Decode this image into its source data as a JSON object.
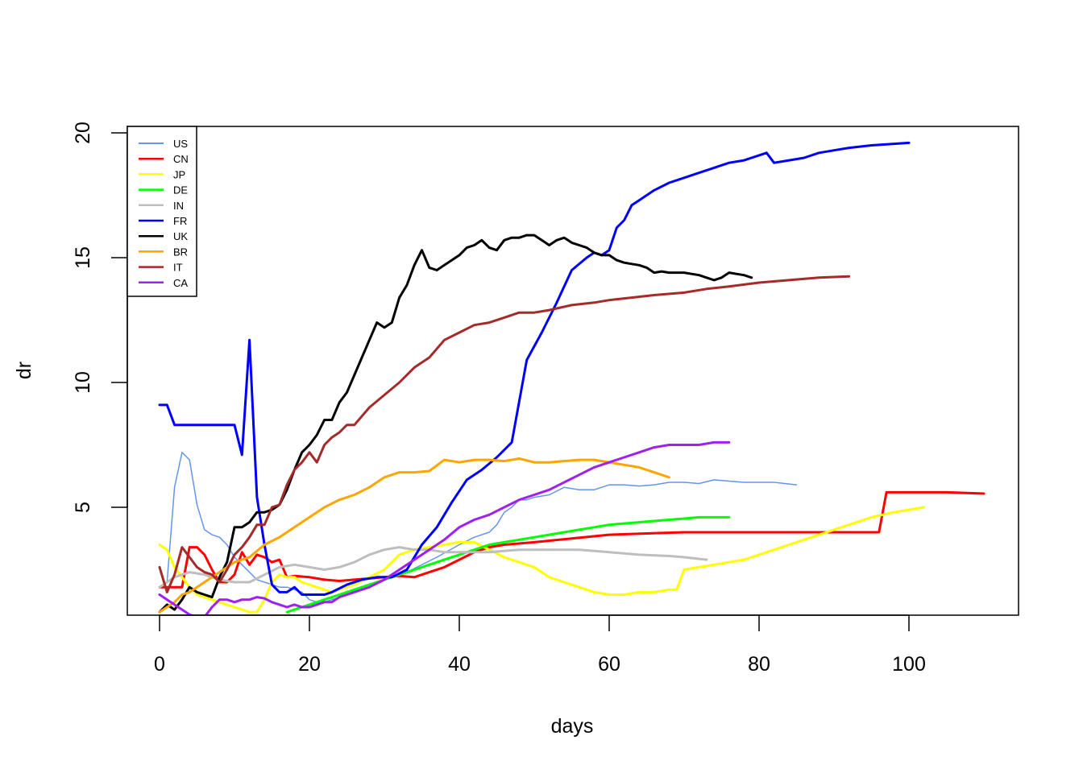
{
  "chart_data": {
    "type": "line",
    "xlabel": "days",
    "ylabel": "dr",
    "xlim": [
      0,
      110
    ],
    "ylim": [
      0.8,
      20
    ],
    "xticks": [
      0,
      20,
      40,
      60,
      80,
      100
    ],
    "yticks": [
      5,
      10,
      15,
      20
    ],
    "legend_position": "top-left",
    "series": [
      {
        "name": "US",
        "color": "#6495ED",
        "line_width": 1.5,
        "x": [
          0,
          1,
          2,
          3,
          4,
          5,
          6,
          7,
          8,
          9,
          10,
          11,
          12,
          13,
          14,
          15,
          16,
          17,
          18,
          19,
          20,
          21,
          22,
          23,
          25,
          27,
          30,
          33,
          35,
          37,
          40,
          42,
          44,
          45,
          46,
          47,
          48,
          49,
          50,
          52,
          54,
          56,
          58,
          60,
          62,
          64,
          66,
          68,
          70,
          72,
          74,
          76,
          78,
          80,
          82,
          85
        ],
        "y": [
          1.8,
          2.0,
          5.8,
          7.2,
          6.9,
          5.1,
          4.1,
          3.9,
          3.8,
          3.5,
          3.0,
          2.7,
          2.4,
          2.1,
          2.0,
          1.9,
          1.8,
          1.8,
          1.7,
          1.6,
          1.3,
          1.2,
          1.2,
          1.3,
          1.5,
          1.8,
          2.1,
          2.4,
          2.7,
          3.0,
          3.5,
          3.8,
          4.0,
          4.3,
          4.8,
          5.0,
          5.3,
          5.3,
          5.4,
          5.5,
          5.8,
          5.7,
          5.7,
          5.9,
          5.9,
          5.85,
          5.9,
          6.0,
          6.0,
          5.95,
          6.1,
          6.05,
          6.0,
          6.0,
          6.0,
          5.9
        ]
      },
      {
        "name": "CN",
        "color": "#FF0000",
        "line_width": 3,
        "x": [
          0,
          1,
          2,
          3,
          4,
          5,
          6,
          7,
          8,
          9,
          10,
          11,
          12,
          13,
          14,
          15,
          16,
          17,
          18,
          20,
          22,
          24,
          26,
          28,
          30,
          32,
          34,
          36,
          38,
          40,
          42,
          44,
          46,
          50,
          55,
          60,
          65,
          70,
          75,
          80,
          85,
          90,
          96,
          97,
          100,
          105,
          110
        ],
        "y": [
          1.8,
          1.8,
          1.8,
          1.8,
          3.4,
          3.4,
          3.1,
          2.5,
          2.0,
          2.0,
          2.3,
          3.2,
          2.7,
          3.1,
          3.0,
          2.8,
          2.9,
          2.2,
          2.25,
          2.2,
          2.1,
          2.05,
          2.1,
          2.15,
          2.2,
          2.25,
          2.2,
          2.4,
          2.6,
          2.9,
          3.2,
          3.4,
          3.5,
          3.6,
          3.75,
          3.9,
          3.95,
          4.0,
          4.0,
          4.0,
          4.0,
          4.0,
          4.0,
          5.6,
          5.6,
          5.6,
          5.55
        ]
      },
      {
        "name": "JP",
        "color": "#FFFF00",
        "line_width": 3,
        "x": [
          0,
          1,
          2,
          3,
          4,
          5,
          6,
          7,
          8,
          9,
          10,
          11,
          12,
          13,
          14,
          15,
          16,
          17,
          18,
          19,
          20,
          21,
          22,
          23,
          24,
          26,
          28,
          30,
          32,
          34,
          36,
          38,
          40,
          42,
          44,
          46,
          48,
          50,
          52,
          54,
          56,
          58,
          60,
          62,
          64,
          66,
          68,
          69,
          70,
          72,
          74,
          76,
          78,
          80,
          82,
          84,
          86,
          88,
          90,
          92,
          95,
          98,
          102
        ],
        "y": [
          3.5,
          3.3,
          2.6,
          2.2,
          1.8,
          1.5,
          1.4,
          1.3,
          1.2,
          1.1,
          1.0,
          0.9,
          0.8,
          0.8,
          1.3,
          2.0,
          2.3,
          2.2,
          2.2,
          2.0,
          1.9,
          1.8,
          1.7,
          1.6,
          1.7,
          1.9,
          2.2,
          2.5,
          3.1,
          3.3,
          3.4,
          3.5,
          3.6,
          3.6,
          3.3,
          3.0,
          2.8,
          2.6,
          2.2,
          2.0,
          1.8,
          1.6,
          1.5,
          1.5,
          1.6,
          1.6,
          1.7,
          1.7,
          2.5,
          2.6,
          2.7,
          2.8,
          2.9,
          3.1,
          3.3,
          3.5,
          3.7,
          3.9,
          4.1,
          4.3,
          4.6,
          4.8,
          5.0
        ]
      },
      {
        "name": "DE",
        "color": "#00FF00",
        "line_width": 3,
        "x": [
          17,
          18,
          20,
          22,
          24,
          26,
          28,
          30,
          32,
          34,
          36,
          38,
          40,
          42,
          44,
          46,
          48,
          50,
          52,
          54,
          56,
          58,
          60,
          62,
          64,
          66,
          68,
          70,
          72,
          74,
          76
        ],
        "y": [
          0.8,
          0.9,
          1.1,
          1.3,
          1.5,
          1.7,
          1.9,
          2.1,
          2.3,
          2.5,
          2.7,
          2.9,
          3.1,
          3.3,
          3.5,
          3.6,
          3.7,
          3.8,
          3.9,
          4.0,
          4.1,
          4.2,
          4.3,
          4.35,
          4.4,
          4.45,
          4.5,
          4.55,
          4.6,
          4.6,
          4.6
        ]
      },
      {
        "name": "IN",
        "color": "#BEBEBE",
        "line_width": 3,
        "x": [
          0,
          2,
          4,
          6,
          8,
          10,
          12,
          14,
          16,
          18,
          20,
          22,
          24,
          26,
          28,
          30,
          32,
          34,
          36,
          38,
          40,
          44,
          48,
          52,
          56,
          60,
          64,
          68,
          70,
          73
        ],
        "y": [
          1.8,
          2.2,
          2.4,
          2.3,
          2.1,
          2.0,
          2.0,
          2.3,
          2.6,
          2.7,
          2.6,
          2.5,
          2.6,
          2.8,
          3.1,
          3.3,
          3.4,
          3.3,
          3.3,
          3.2,
          3.2,
          3.2,
          3.3,
          3.3,
          3.3,
          3.2,
          3.1,
          3.05,
          3.0,
          2.9
        ]
      },
      {
        "name": "FR",
        "color": "#0000FF",
        "line_width": 3,
        "x": [
          0,
          1,
          2,
          4,
          6,
          8,
          10,
          11,
          12,
          13,
          14,
          15,
          16,
          17,
          18,
          19,
          20,
          21,
          22,
          23,
          25,
          27,
          29,
          31,
          33,
          35,
          37,
          39,
          41,
          43,
          45,
          47,
          49,
          51,
          53,
          55,
          57,
          58,
          59,
          60,
          61,
          62,
          63,
          64,
          66,
          68,
          70,
          72,
          74,
          76,
          78,
          80,
          81,
          82,
          84,
          86,
          88,
          90,
          92,
          95,
          100
        ],
        "y": [
          9.1,
          9.1,
          8.3,
          8.3,
          8.3,
          8.3,
          8.3,
          7.1,
          11.7,
          5.4,
          3.5,
          1.9,
          1.6,
          1.6,
          1.8,
          1.5,
          1.5,
          1.5,
          1.5,
          1.6,
          1.9,
          2.1,
          2.2,
          2.2,
          2.5,
          3.5,
          4.2,
          5.2,
          6.1,
          6.5,
          7.0,
          7.6,
          10.9,
          12.0,
          13.2,
          14.5,
          15.0,
          15.2,
          15.1,
          15.3,
          16.2,
          16.5,
          17.1,
          17.3,
          17.7,
          18.0,
          18.2,
          18.4,
          18.6,
          18.8,
          18.9,
          19.1,
          19.2,
          18.8,
          18.9,
          19.0,
          19.2,
          19.3,
          19.4,
          19.5,
          19.6
        ]
      },
      {
        "name": "UK",
        "color": "#000000",
        "line_width": 3,
        "x": [
          0,
          1,
          2,
          3,
          4,
          5,
          6,
          7,
          8,
          9,
          10,
          11,
          12,
          13,
          14,
          15,
          16,
          17,
          18,
          19,
          20,
          21,
          22,
          23,
          24,
          25,
          26,
          27,
          28,
          29,
          30,
          31,
          32,
          33,
          34,
          35,
          36,
          37,
          38,
          39,
          40,
          41,
          42,
          43,
          44,
          45,
          46,
          47,
          48,
          49,
          50,
          51,
          52,
          53,
          54,
          55,
          56,
          57,
          58,
          59,
          60,
          61,
          62,
          63,
          64,
          65,
          66,
          67,
          68,
          69,
          70,
          71,
          72,
          73,
          74,
          75,
          76,
          77,
          78,
          79
        ],
        "y": [
          0.8,
          1.1,
          0.9,
          1.3,
          1.8,
          1.6,
          1.5,
          1.4,
          2.2,
          2.8,
          4.2,
          4.2,
          4.4,
          4.8,
          4.8,
          4.9,
          5.1,
          5.7,
          6.5,
          7.2,
          7.5,
          7.9,
          8.5,
          8.5,
          9.2,
          9.6,
          10.3,
          11.0,
          11.7,
          12.4,
          12.2,
          12.4,
          13.4,
          13.9,
          14.7,
          15.3,
          14.6,
          14.5,
          14.7,
          14.9,
          15.1,
          15.4,
          15.5,
          15.7,
          15.4,
          15.3,
          15.7,
          15.8,
          15.8,
          15.9,
          15.9,
          15.7,
          15.5,
          15.7,
          15.8,
          15.6,
          15.5,
          15.4,
          15.2,
          15.1,
          15.1,
          14.9,
          14.8,
          14.75,
          14.7,
          14.6,
          14.4,
          14.45,
          14.4,
          14.4,
          14.4,
          14.35,
          14.3,
          14.2,
          14.1,
          14.2,
          14.4,
          14.35,
          14.3,
          14.2
        ]
      },
      {
        "name": "BR",
        "color": "#FFA500",
        "line_width": 3,
        "x": [
          0,
          1,
          2,
          3,
          4,
          5,
          6,
          7,
          8,
          9,
          10,
          11,
          12,
          14,
          16,
          18,
          20,
          22,
          24,
          26,
          28,
          30,
          32,
          34,
          36,
          38,
          40,
          42,
          44,
          46,
          48,
          50,
          52,
          54,
          56,
          58,
          60,
          62,
          64,
          66,
          68
        ],
        "y": [
          0.8,
          1.0,
          1.2,
          1.5,
          1.6,
          1.8,
          2.0,
          2.2,
          2.4,
          2.6,
          2.8,
          2.9,
          3.0,
          3.5,
          3.8,
          4.2,
          4.6,
          5.0,
          5.3,
          5.5,
          5.8,
          6.2,
          6.4,
          6.4,
          6.45,
          6.9,
          6.8,
          6.9,
          6.9,
          6.85,
          6.95,
          6.8,
          6.8,
          6.85,
          6.9,
          6.9,
          6.8,
          6.7,
          6.6,
          6.4,
          6.2
        ]
      },
      {
        "name": "IT",
        "color": "#A52A2A",
        "line_width": 3,
        "x": [
          0,
          1,
          2,
          3,
          4,
          5,
          6,
          7,
          8,
          9,
          10,
          11,
          12,
          13,
          14,
          15,
          16,
          17,
          18,
          19,
          20,
          21,
          22,
          23,
          24,
          25,
          26,
          28,
          30,
          32,
          34,
          36,
          38,
          40,
          42,
          44,
          46,
          48,
          50,
          52,
          55,
          58,
          60,
          63,
          66,
          70,
          73,
          76,
          80,
          84,
          88,
          92
        ],
        "y": [
          2.6,
          1.6,
          2.3,
          3.4,
          3.0,
          2.6,
          2.4,
          2.3,
          2.0,
          2.5,
          3.1,
          3.4,
          3.8,
          4.3,
          4.3,
          5.0,
          5.1,
          5.9,
          6.5,
          6.8,
          7.2,
          6.8,
          7.5,
          7.8,
          8.0,
          8.3,
          8.3,
          9.0,
          9.5,
          10.0,
          10.6,
          11.0,
          11.7,
          12.0,
          12.3,
          12.4,
          12.6,
          12.8,
          12.8,
          12.9,
          13.1,
          13.2,
          13.3,
          13.4,
          13.5,
          13.6,
          13.75,
          13.85,
          14.0,
          14.1,
          14.2,
          14.25
        ]
      },
      {
        "name": "CA",
        "color": "#A020F0",
        "line_width": 3,
        "x": [
          0,
          1,
          2,
          3,
          4,
          5,
          6,
          7,
          8,
          9,
          10,
          11,
          12,
          13,
          14,
          15,
          16,
          17,
          18,
          19,
          20,
          21,
          22,
          23,
          24,
          26,
          28,
          30,
          32,
          34,
          36,
          38,
          40,
          42,
          44,
          46,
          48,
          50,
          52,
          54,
          56,
          58,
          60,
          62,
          64,
          66,
          68,
          70,
          72,
          74,
          76
        ],
        "y": [
          1.5,
          1.3,
          1.1,
          0.9,
          0.7,
          0.6,
          0.6,
          1.0,
          1.3,
          1.3,
          1.2,
          1.3,
          1.3,
          1.4,
          1.35,
          1.2,
          1.1,
          1.0,
          1.1,
          1.0,
          1.0,
          1.1,
          1.2,
          1.2,
          1.4,
          1.6,
          1.8,
          2.1,
          2.5,
          2.9,
          3.3,
          3.7,
          4.2,
          4.5,
          4.7,
          5.0,
          5.3,
          5.5,
          5.7,
          6.0,
          6.3,
          6.6,
          6.8,
          7.0,
          7.2,
          7.4,
          7.5,
          7.5,
          7.5,
          7.6,
          7.6
        ]
      }
    ]
  }
}
